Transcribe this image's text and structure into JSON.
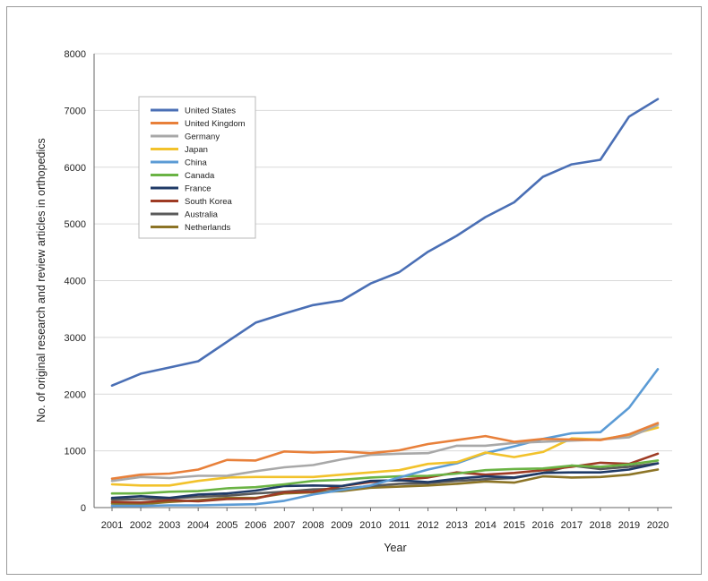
{
  "chart_data": {
    "type": "line",
    "title": "",
    "xlabel": "Year",
    "ylabel": "No. of original research and review articles in orthopedics",
    "ylim": [
      0,
      8000
    ],
    "yticks": [
      0,
      1000,
      2000,
      3000,
      4000,
      5000,
      6000,
      7000,
      8000
    ],
    "grid": "horizontal",
    "legend_position": "top-left",
    "x": [
      "2001",
      "2002",
      "2003",
      "2004",
      "2005",
      "2006",
      "2007",
      "2008",
      "2009",
      "2010",
      "2011",
      "2012",
      "2013",
      "2014",
      "2015",
      "2016",
      "2017",
      "2018",
      "2019",
      "2020"
    ],
    "series": [
      {
        "name": "United States",
        "color": "#4a6fb5",
        "values": [
          2150,
          2360,
          2470,
          2580,
          2920,
          3260,
          3420,
          3570,
          3650,
          3950,
          4150,
          4510,
          4790,
          5120,
          5380,
          5830,
          6050,
          6130,
          6890,
          7200
        ]
      },
      {
        "name": "United Kingdom",
        "color": "#e8803a",
        "values": [
          510,
          580,
          600,
          670,
          840,
          830,
          990,
          970,
          990,
          960,
          1010,
          1120,
          1190,
          1260,
          1160,
          1210,
          1200,
          1190,
          1290,
          1490
        ]
      },
      {
        "name": "Germany",
        "color": "#a8a8a8",
        "values": [
          470,
          540,
          520,
          560,
          560,
          640,
          710,
          750,
          850,
          930,
          950,
          960,
          1090,
          1090,
          1140,
          1160,
          1180,
          1200,
          1240,
          1460
        ]
      },
      {
        "name": "Japan",
        "color": "#f2c22b",
        "values": [
          410,
          390,
          390,
          470,
          530,
          540,
          540,
          540,
          580,
          620,
          660,
          770,
          800,
          970,
          890,
          980,
          1220,
          1200,
          1280,
          1410
        ]
      },
      {
        "name": "China",
        "color": "#5b9bd5",
        "values": [
          30,
          30,
          40,
          40,
          50,
          60,
          120,
          230,
          310,
          390,
          530,
          670,
          780,
          960,
          1080,
          1210,
          1310,
          1330,
          1760,
          2440
        ]
      },
      {
        "name": "Canada",
        "color": "#6ab344",
        "values": [
          250,
          250,
          280,
          290,
          340,
          360,
          410,
          470,
          490,
          530,
          550,
          560,
          600,
          660,
          680,
          690,
          740,
          720,
          760,
          830
        ]
      },
      {
        "name": "France",
        "color": "#1f3a66",
        "values": [
          170,
          200,
          170,
          230,
          250,
          300,
          380,
          390,
          380,
          470,
          480,
          450,
          510,
          550,
          530,
          610,
          620,
          620,
          670,
          780
        ]
      },
      {
        "name": "South Korea",
        "color": "#9e3b24",
        "values": [
          100,
          90,
          130,
          110,
          150,
          160,
          270,
          280,
          380,
          450,
          490,
          530,
          620,
          580,
          610,
          660,
          720,
          790,
          770,
          950
        ]
      },
      {
        "name": "Australia",
        "color": "#5a5a5a",
        "values": [
          140,
          150,
          160,
          190,
          210,
          250,
          280,
          320,
          330,
          380,
          420,
          430,
          470,
          500,
          520,
          610,
          740,
          680,
          720,
          780
        ]
      },
      {
        "name": "Netherlands",
        "color": "#8c7426",
        "values": [
          70,
          60,
          100,
          130,
          170,
          170,
          250,
          270,
          290,
          350,
          370,
          390,
          420,
          460,
          440,
          550,
          530,
          540,
          580,
          670
        ]
      }
    ]
  }
}
